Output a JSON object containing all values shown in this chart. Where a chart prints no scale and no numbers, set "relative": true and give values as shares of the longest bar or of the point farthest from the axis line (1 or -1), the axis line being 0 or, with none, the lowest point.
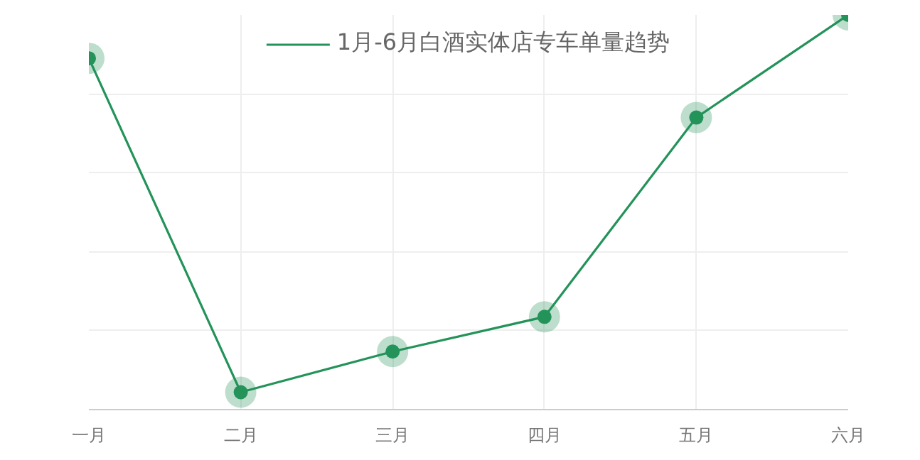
{
  "chart_data": {
    "type": "line",
    "relative": true,
    "categories": [
      "一月",
      "二月",
      "三月",
      "四月",
      "五月",
      "六月"
    ],
    "series": [
      {
        "name": "1月-6月白酒实体店专车单量趋势",
        "color": "#23935a",
        "values": [
          0.89,
          0.044,
          0.147,
          0.235,
          0.74,
          1
        ]
      }
    ],
    "legend": "top",
    "grid": true,
    "marker": "circle",
    "line_style": "solid"
  }
}
